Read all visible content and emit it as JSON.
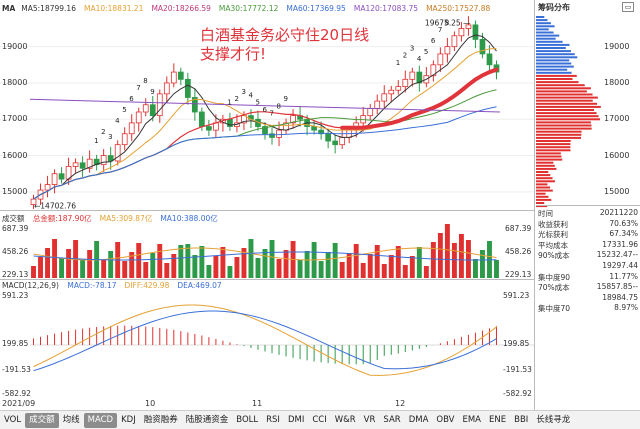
{
  "main_chart": {
    "ticker_label": "MA",
    "ma_legend": [
      {
        "label": "MA5:18799.16",
        "color": "#333333"
      },
      {
        "label": "MA10:18831.21",
        "color": "#e5a134"
      },
      {
        "label": "MA20:18266.59",
        "color": "#c0397a"
      },
      {
        "label": "MA30:17772.12",
        "color": "#4a9a3a"
      },
      {
        "label": "MA60:17369.95",
        "color": "#3a6fd8"
      },
      {
        "label": "MA120:17083.75",
        "color": "#8a4fbf"
      },
      {
        "label": "MA250:17527.88",
        "color": "#c77b22"
      }
    ],
    "annotation_text_line1": "白酒基金务必守住20日线",
    "annotation_text_line2": "支撑才行!",
    "high_label": "19675.25",
    "low_label": "14702.76",
    "y_ticks": [
      "19000",
      "18000",
      "17000",
      "16000",
      "15000"
    ],
    "x_labels": [
      "10",
      "11",
      "12"
    ],
    "date_label": "2021/09",
    "numbered_marks": [
      "1",
      "2",
      "3",
      "4",
      "5",
      "6",
      "7",
      "8",
      "9",
      "1",
      "2",
      "3",
      "4",
      "5",
      "6",
      "7",
      "8",
      "9",
      "1",
      "2",
      "3",
      "4",
      "5",
      "6",
      "7",
      "8",
      "9"
    ]
  },
  "volume_panel": {
    "title": "成交额",
    "legend": [
      {
        "label": "总金额:187.90亿",
        "color": "#e03030"
      },
      {
        "label": "MA5:309.87亿",
        "color": "#e5a134"
      },
      {
        "label": "MA10:388.00亿",
        "color": "#3a6fd8"
      }
    ],
    "y_ticks": [
      "687.39",
      "458.26",
      "229.13",
      "亿"
    ]
  },
  "macd_panel": {
    "title": "MACD(12,26,9)",
    "legend": [
      {
        "label": "MACD:-78.17",
        "color": "#3a6fd8"
      },
      {
        "label": "DIFF:429.98",
        "color": "#e5a134"
      },
      {
        "label": "DEA:469.07",
        "color": "#3a6fd8"
      }
    ],
    "y_ticks": [
      "591.23",
      "199.85",
      "-191.53",
      "-582.92"
    ]
  },
  "sidebar": {
    "title": "筹码分布",
    "y_ticks": [
      "19000",
      "18000",
      "17000",
      "16000",
      "15000"
    ],
    "rows": [
      {
        "k": "时间",
        "v": "20211220"
      },
      {
        "k": "收益获利",
        "v": "70.63%"
      },
      {
        "k": "光标获利",
        "v": "67.34%"
      },
      {
        "k": "平均成本",
        "v": "17331.96"
      },
      {
        "k": "90%成本",
        "v": "15232.47--"
      },
      {
        "k": "",
        "v": "19297.44"
      },
      {
        "k": "集中度90",
        "v": "11.77%"
      },
      {
        "k": "70%成本",
        "v": "15857.85--"
      },
      {
        "k": "",
        "v": "18984.75"
      },
      {
        "k": "集中度70",
        "v": "8.97%"
      }
    ]
  },
  "toolbar": {
    "items": [
      {
        "label": "VOL",
        "selected": false
      },
      {
        "label": "成交额",
        "selected": true
      },
      {
        "label": "均线",
        "selected": false
      },
      {
        "label": "MACD",
        "selected": true
      },
      {
        "label": "KDJ",
        "selected": false
      },
      {
        "label": "融资融券",
        "selected": false
      },
      {
        "label": "陆股通资金",
        "selected": false
      },
      {
        "label": "BOLL",
        "selected": false
      },
      {
        "label": "RSI",
        "selected": false
      },
      {
        "label": "DMI",
        "selected": false
      },
      {
        "label": "CCI",
        "selected": false
      },
      {
        "label": "W&R",
        "selected": false
      },
      {
        "label": "VR",
        "selected": false
      },
      {
        "label": "SAR",
        "selected": false
      },
      {
        "label": "DMA",
        "selected": false
      },
      {
        "label": "OBV",
        "selected": false
      },
      {
        "label": "EMA",
        "selected": false
      },
      {
        "label": "ENE",
        "selected": false
      },
      {
        "label": "BBI",
        "selected": false
      },
      {
        "label": "长线寻龙",
        "selected": false
      }
    ]
  },
  "chart_data": {
    "type": "candlestick",
    "ylim": [
      14500,
      19900
    ],
    "closes": [
      14800,
      15050,
      15200,
      15500,
      15350,
      15700,
      15800,
      15650,
      15900,
      15750,
      16000,
      15850,
      16300,
      16600,
      16900,
      17200,
      17400,
      17100,
      17700,
      18000,
      18300,
      18100,
      17600,
      17200,
      16800,
      16700,
      16900,
      17000,
      16800,
      16900,
      17100,
      17000,
      16800,
      16600,
      16500,
      16700,
      16900,
      17100,
      17000,
      16800,
      16700,
      16600,
      16400,
      16300,
      16500,
      16700,
      16900,
      17100,
      17300,
      17500,
      17700,
      17800,
      17900,
      18100,
      18300,
      18000,
      18200,
      18500,
      18800,
      19000,
      19300,
      19500,
      19600,
      19200,
      18800,
      18500,
      18300
    ],
    "ma_values_at_end": {
      "MA5": 18799.16,
      "MA10": 18831.21,
      "MA20": 18266.59,
      "MA30": 17772.12,
      "MA60": 17369.95,
      "MA120": 17083.75,
      "MA250": 17527.88
    },
    "volume_total": 187.9,
    "macd": -78.17,
    "diff": 429.98,
    "dea": 469.07
  }
}
